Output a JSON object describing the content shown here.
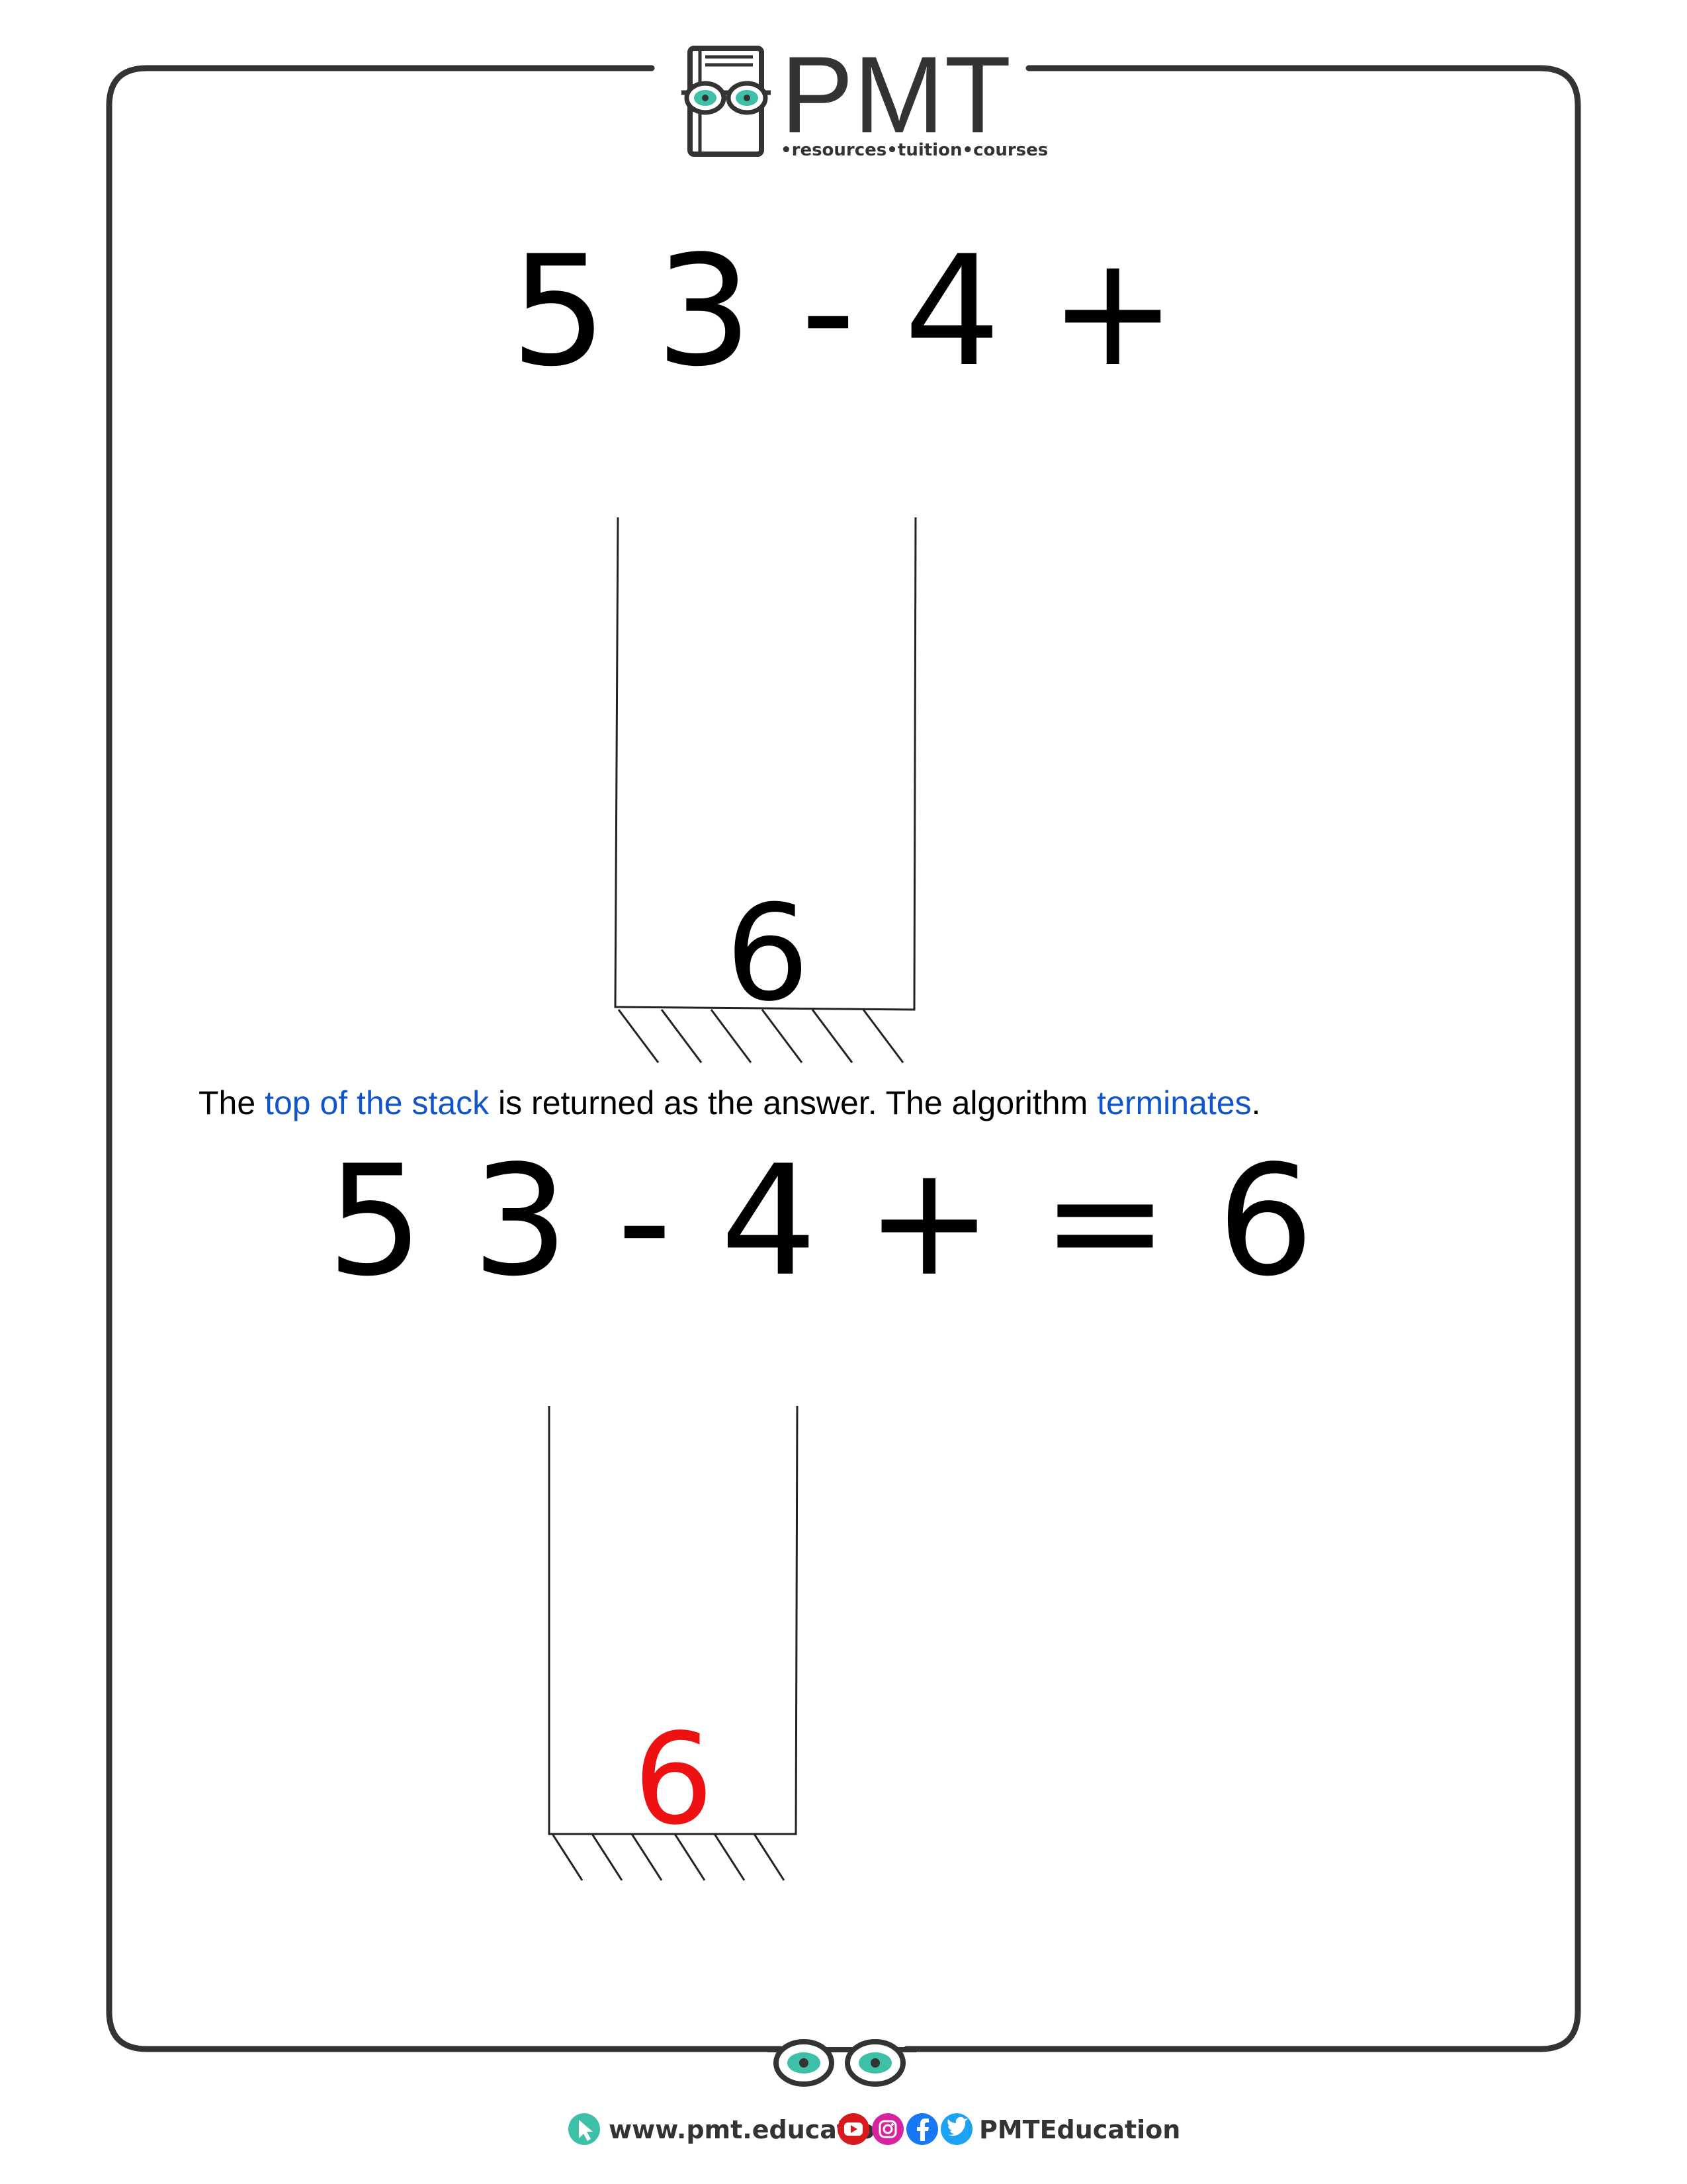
{
  "header": {
    "logo_text": "PMT",
    "logo_tagline": "•resources•tuition•courses"
  },
  "step_before": {
    "expression": "5 3 - 4 +",
    "stack_items": [
      "6"
    ]
  },
  "caption": {
    "part1": "The ",
    "term1": "top of the stack",
    "part2": " is returned as the answer. The algorithm ",
    "term2": "terminates",
    "part3": "."
  },
  "step_final": {
    "expression": "5 3 - 4 + = 6",
    "stack_items": [
      "6"
    ],
    "result_color": "#ee1111"
  },
  "footer": {
    "website": "www.pmt.education",
    "social_handle": "PMTEducation",
    "social_icons": [
      "youtube-icon",
      "instagram-icon",
      "facebook-icon",
      "twitter-icon"
    ]
  },
  "colors": {
    "frame": "#333333",
    "accent_teal": "#3dbfa8",
    "highlight_blue": "#1155cc",
    "result_red": "#ee1111"
  }
}
